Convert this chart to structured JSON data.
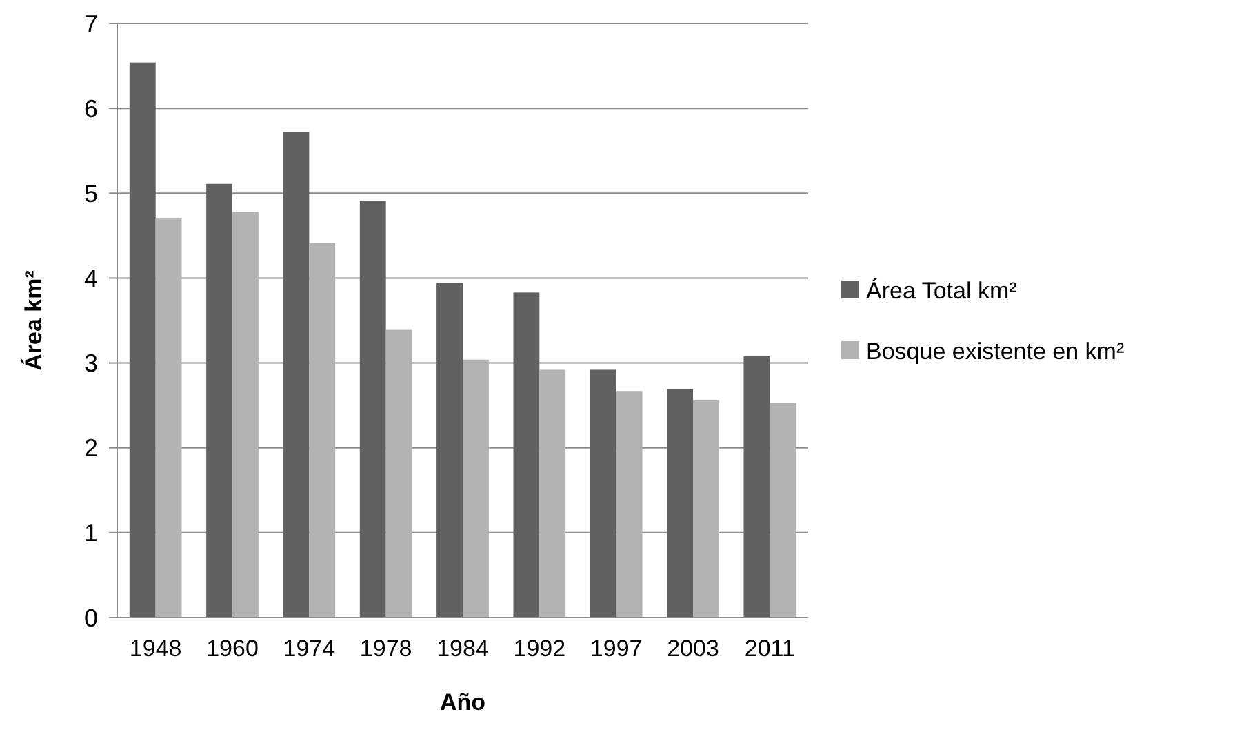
{
  "chart_data": {
    "type": "bar",
    "xlabel": "Año",
    "ylabel": "Área km²",
    "categories": [
      "1948",
      "1960",
      "1974",
      "1978",
      "1984",
      "1992",
      "1997",
      "2003",
      "2011"
    ],
    "series": [
      {
        "name": "Área Total km²",
        "color": "#616161",
        "values": [
          6.54,
          5.11,
          5.72,
          4.91,
          3.94,
          3.83,
          2.92,
          2.69,
          3.08
        ]
      },
      {
        "name": "Bosque existente en km²",
        "color": "#b3b3b3",
        "values": [
          4.7,
          4.78,
          4.41,
          3.39,
          3.04,
          2.92,
          2.67,
          2.56,
          2.53
        ]
      }
    ],
    "ylim": [
      0,
      7
    ],
    "yticks": [
      0,
      1,
      2,
      3,
      4,
      5,
      6,
      7
    ],
    "grid": "y",
    "legend": "right"
  }
}
